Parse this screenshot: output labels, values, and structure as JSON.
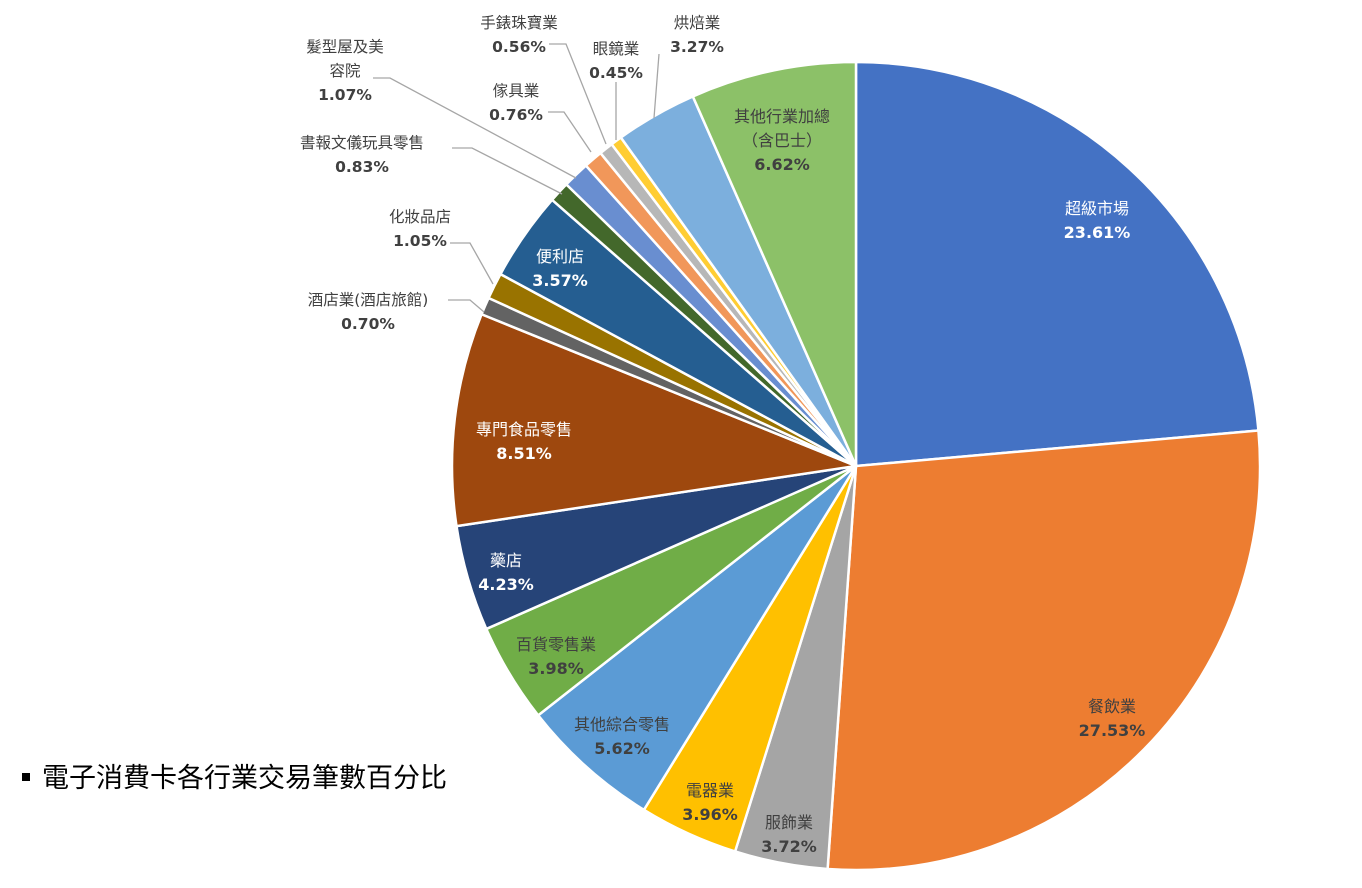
{
  "chart_data": {
    "type": "pie",
    "title": "電子消費卡各行業交易筆數百分比",
    "start_angle_deg": 0,
    "direction": "clockwise",
    "slices": [
      {
        "label": "超級市場",
        "value": 23.61,
        "pct_text": "23.61%",
        "color": "#4472C4",
        "label_style": "inside-white"
      },
      {
        "label": "餐飲業",
        "value": 27.53,
        "pct_text": "27.53%",
        "color": "#ED7D31",
        "label_style": "inside-dark"
      },
      {
        "label": "服飾業",
        "value": 3.72,
        "pct_text": "3.72%",
        "color": "#A5A5A5",
        "label_style": "inside-dark"
      },
      {
        "label": "電器業",
        "value": 3.96,
        "pct_text": "3.96%",
        "color": "#FFC000",
        "label_style": "inside-dark"
      },
      {
        "label": "其他綜合零售",
        "value": 5.62,
        "pct_text": "5.62%",
        "color": "#5B9BD5",
        "label_style": "inside-dark"
      },
      {
        "label": "百貨零售業",
        "value": 3.98,
        "pct_text": "3.98%",
        "color": "#70AD47",
        "label_style": "inside-dark"
      },
      {
        "label": "藥店",
        "value": 4.23,
        "pct_text": "4.23%",
        "color": "#264478",
        "label_style": "inside-white"
      },
      {
        "label": "專門食品零售",
        "value": 8.51,
        "pct_text": "8.51%",
        "color": "#9E480E",
        "label_style": "inside-white"
      },
      {
        "label": "酒店業(酒店旅館)",
        "value": 0.7,
        "pct_text": "0.70%",
        "color": "#636363",
        "label_style": "outside"
      },
      {
        "label": "化妝品店",
        "value": 1.05,
        "pct_text": "1.05%",
        "color": "#997300",
        "label_style": "outside"
      },
      {
        "label": "便利店",
        "value": 3.57,
        "pct_text": "3.57%",
        "color": "#255E91",
        "label_style": "inside-white"
      },
      {
        "label": "書報文儀玩具零售",
        "value": 0.83,
        "pct_text": "0.83%",
        "color": "#43682B",
        "label_style": "outside"
      },
      {
        "label": "髮型屋及美容院",
        "label_lines": [
          "髮型屋及美",
          "容院"
        ],
        "value": 1.07,
        "pct_text": "1.07%",
        "color": "#698ED0",
        "label_style": "outside"
      },
      {
        "label": "傢具業",
        "value": 0.76,
        "pct_text": "0.76%",
        "color": "#F1975A",
        "label_style": "outside"
      },
      {
        "label": "手錶珠寶業",
        "value": 0.56,
        "pct_text": "0.56%",
        "color": "#B7B7B7",
        "label_style": "outside"
      },
      {
        "label": "眼鏡業",
        "value": 0.45,
        "pct_text": "0.45%",
        "color": "#FFCD33",
        "label_style": "outside"
      },
      {
        "label": "烘焙業",
        "value": 3.27,
        "pct_text": "3.27%",
        "color": "#7CAFDD",
        "label_style": "outside"
      },
      {
        "label": "其他行業加總（含巴士）",
        "label_lines": [
          "其他行業加總",
          "（含巴士）"
        ],
        "value": 6.62,
        "pct_text": "6.62%",
        "color": "#8CC168",
        "label_style": "inside-dark"
      }
    ],
    "legend": "none"
  },
  "caption": "電子消費卡各行業交易筆數百分比"
}
